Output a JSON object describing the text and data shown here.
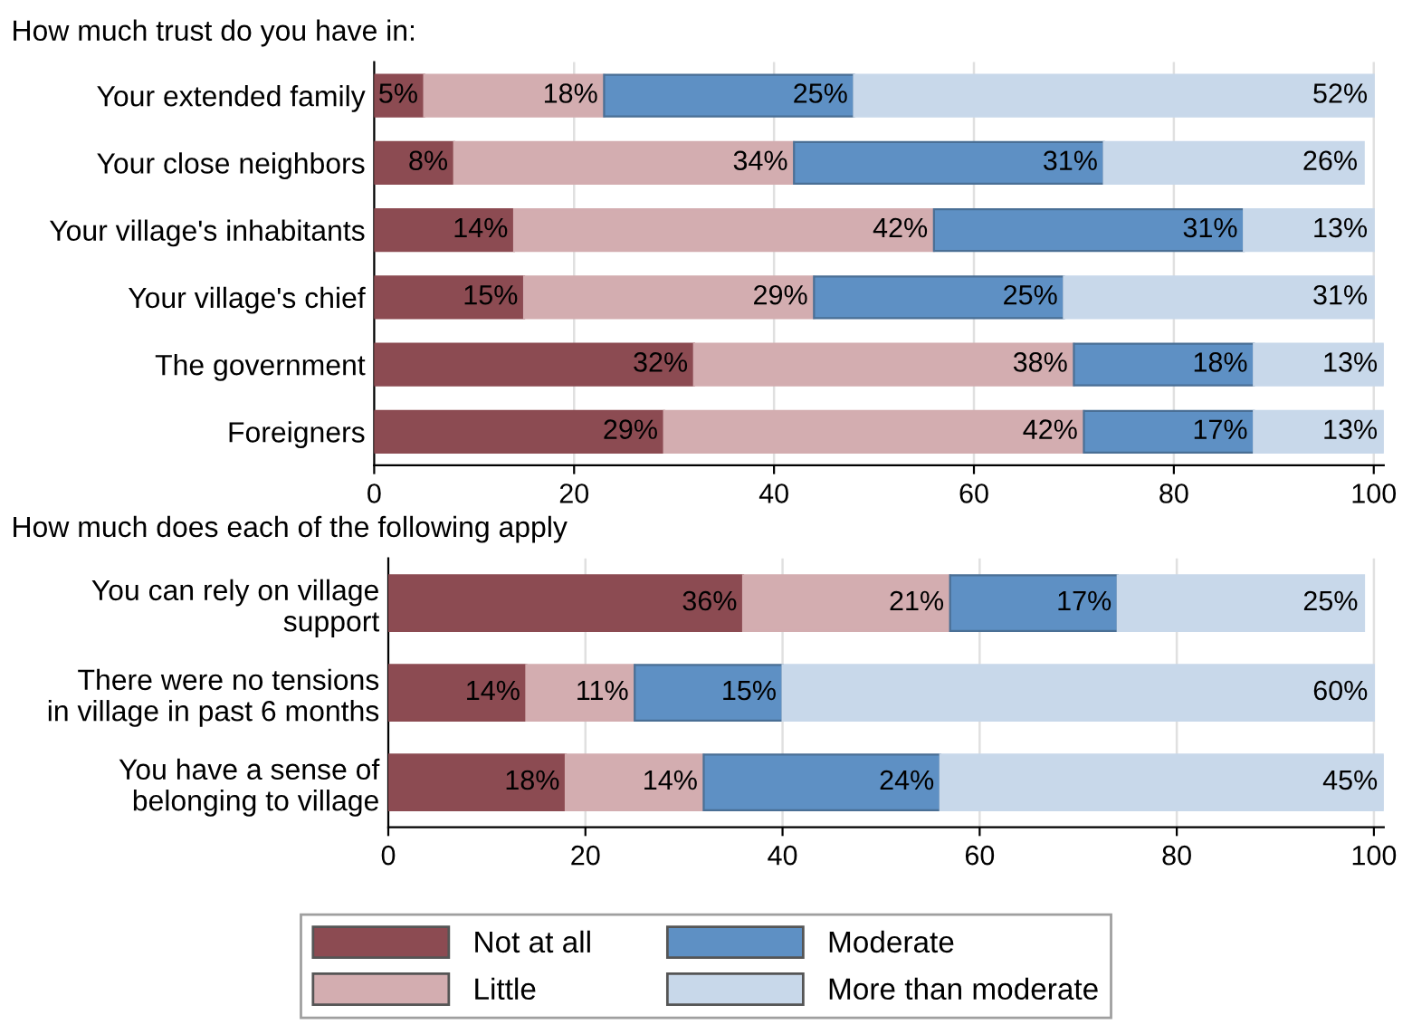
{
  "chart_data": [
    {
      "type": "bar",
      "orientation": "horizontal",
      "stacked": true,
      "title": "How much trust do you have in:",
      "categories": [
        "Your extended family",
        "Your close neighbors",
        "Your village's inhabitants",
        "Your village's chief",
        "The government",
        "Foreigners"
      ],
      "series": [
        {
          "color": "#8c4b52",
          "values": [
            5,
            8,
            14,
            15,
            32,
            29
          ],
          "value_labels": [
            "5%",
            "8%",
            "14%",
            "15%",
            "32%",
            "29%"
          ]
        },
        {
          "color": "#d3adb0",
          "values": [
            18,
            34,
            42,
            29,
            38,
            42
          ],
          "value_labels": [
            "18%",
            "34%",
            "42%",
            "29%",
            "38%",
            "42%"
          ]
        },
        {
          "color": "#5e90c4",
          "values": [
            25,
            31,
            31,
            25,
            18,
            17
          ],
          "value_labels": [
            "25%",
            "31%",
            "31%",
            "25%",
            "18%",
            "17%"
          ]
        },
        {
          "color": "#c8d8ea",
          "values": [
            52,
            26,
            13,
            31,
            13,
            13
          ],
          "value_labels": [
            "52%",
            "26%",
            "13%",
            "31%",
            "13%",
            "13%"
          ]
        }
      ],
      "xlim": [
        0,
        101
      ],
      "xticks": [
        0,
        20,
        40,
        60,
        80,
        100
      ],
      "grid": "x"
    },
    {
      "type": "bar",
      "orientation": "horizontal",
      "stacked": true,
      "title": "How much does each of the following apply",
      "categories": [
        "You can rely on village\nsupport",
        "There were no tensions\nin village in past 6 months",
        "You have a sense of\nbelonging to village"
      ],
      "series": [
        {
          "name": "Not at all",
          "color": "#8c4b52",
          "values": [
            36,
            14,
            18
          ],
          "value_labels": [
            "36%",
            "14%",
            "18%"
          ]
        },
        {
          "name": "Little",
          "color": "#d3adb0",
          "values": [
            21,
            11,
            14
          ],
          "value_labels": [
            "21%",
            "11%",
            "14%"
          ]
        },
        {
          "name": "Moderate",
          "color": "#5e90c4",
          "values": [
            17,
            15,
            24
          ],
          "value_labels": [
            "17%",
            "15%",
            "24%"
          ]
        },
        {
          "name": "More than moderate",
          "color": "#c8d8ea",
          "values": [
            25,
            60,
            45
          ],
          "value_labels": [
            "25%",
            "60%",
            "45%"
          ]
        }
      ],
      "xlim": [
        0,
        101
      ],
      "xticks": [
        0,
        20,
        40,
        60,
        80,
        100
      ],
      "grid": "x",
      "legend": "bottom"
    }
  ]
}
